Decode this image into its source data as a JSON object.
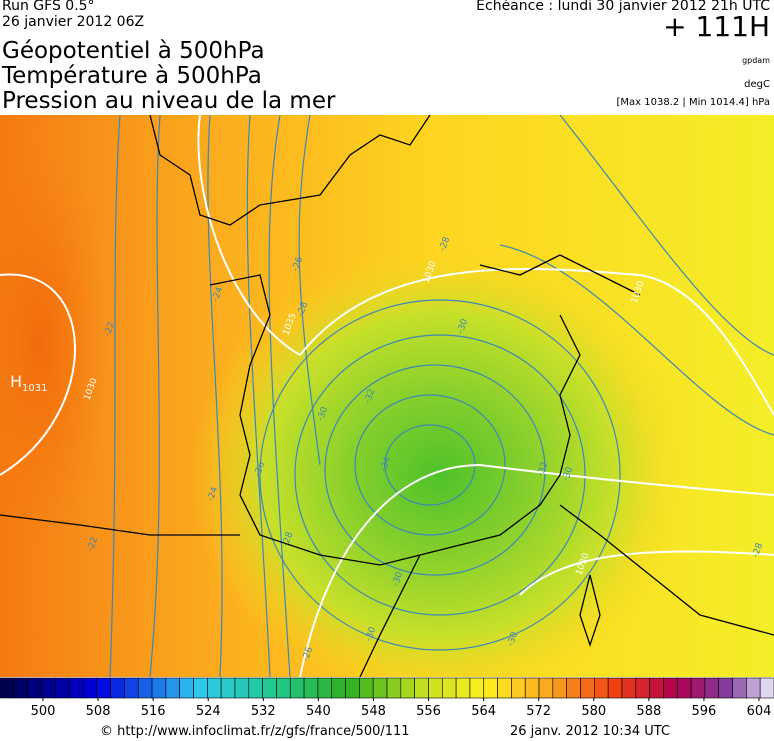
{
  "header": {
    "run": "Run GFS 0.5°",
    "date": "26 janvier 2012 06Z",
    "echeance": "Echéance : lundi 30 janvier 2012 21h UTC",
    "lead": "+ 111H",
    "titles": [
      "Géopotentiel à 500hPa",
      "Température à 500hPa",
      "Pression au niveau de la mer"
    ],
    "units": [
      "gpdam",
      "degC",
      "[Max 1038.2 | Min 1014.4] hPa"
    ]
  },
  "map": {
    "high": "H",
    "high_value": "1031",
    "labels": [
      "-22",
      "-22",
      "-24",
      "-24",
      "-26",
      "-26",
      "-28",
      "-28",
      "-28",
      "-30",
      "-30",
      "-30",
      "-32",
      "-32",
      "-34",
      "-30",
      "-26",
      "-28",
      "1030",
      "1030",
      "1035",
      "1030",
      "1030",
      "-30",
      "-30"
    ]
  },
  "colorbar": {
    "ticks": [
      500,
      508,
      516,
      524,
      532,
      540,
      548,
      556,
      564,
      572,
      580,
      588,
      596,
      604
    ]
  },
  "footer": {
    "url": "© http://www.infoclimat.fr/z/gfs/france/500/111",
    "generated": "26 janv. 2012 10:34 UTC"
  }
}
